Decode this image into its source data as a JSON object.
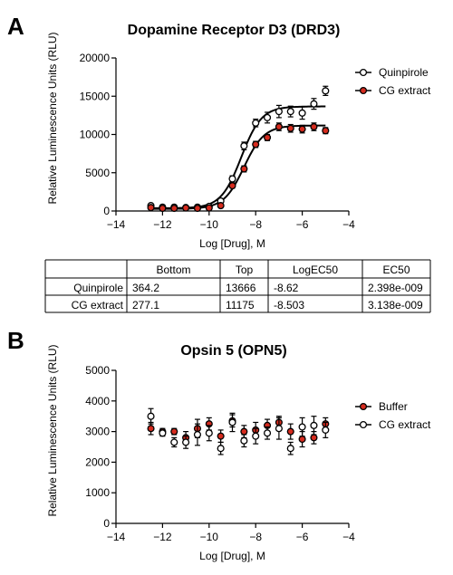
{
  "panels": [
    {
      "letter": "A"
    },
    {
      "letter": "B"
    }
  ],
  "colors": {
    "open_marker": "#ffffff",
    "red_marker": "#d52b1e",
    "line": "#000000"
  },
  "chart_data": [
    {
      "type": "scatter",
      "title": "Dopamine Receptor D3 (DRD3)",
      "xlabel": "Log [Drug], M",
      "ylabel": "Relative Luminescence Units (RLU)",
      "xlim": [
        -14,
        -4
      ],
      "ylim": [
        0,
        20000
      ],
      "xticks": [
        -14,
        -12,
        -10,
        -8,
        -6,
        -4
      ],
      "yticks": [
        0,
        5000,
        10000,
        15000,
        20000
      ],
      "legend_position": "right",
      "series": [
        {
          "name": "Quinpirole",
          "marker": "open",
          "fit": {
            "bottom": 364.2,
            "top": 13666,
            "logec50": -8.62
          },
          "points": [
            {
              "x": -12.5,
              "y": 700,
              "err": 150
            },
            {
              "x": -12.0,
              "y": 500,
              "err": 100
            },
            {
              "x": -11.5,
              "y": 500,
              "err": 100
            },
            {
              "x": -11.0,
              "y": 450,
              "err": 100
            },
            {
              "x": -10.5,
              "y": 500,
              "err": 100
            },
            {
              "x": -10.0,
              "y": 600,
              "err": 150
            },
            {
              "x": -9.5,
              "y": 1300,
              "err": 200
            },
            {
              "x": -9.0,
              "y": 4200,
              "err": 400
            },
            {
              "x": -8.5,
              "y": 8500,
              "err": 500
            },
            {
              "x": -8.0,
              "y": 11500,
              "err": 500
            },
            {
              "x": -7.5,
              "y": 12200,
              "err": 700
            },
            {
              "x": -7.0,
              "y": 13000,
              "err": 800
            },
            {
              "x": -6.5,
              "y": 13000,
              "err": 700
            },
            {
              "x": -6.0,
              "y": 12800,
              "err": 800
            },
            {
              "x": -5.5,
              "y": 14000,
              "err": 700
            },
            {
              "x": -5.0,
              "y": 15700,
              "err": 600
            }
          ]
        },
        {
          "name": "CG extract",
          "marker": "red",
          "fit": {
            "bottom": 277.1,
            "top": 11175,
            "logec50": -8.503
          },
          "points": [
            {
              "x": -12.5,
              "y": 450,
              "err": 100
            },
            {
              "x": -12.0,
              "y": 350,
              "err": 100
            },
            {
              "x": -11.5,
              "y": 350,
              "err": 100
            },
            {
              "x": -11.0,
              "y": 400,
              "err": 100
            },
            {
              "x": -10.5,
              "y": 350,
              "err": 100
            },
            {
              "x": -10.0,
              "y": 400,
              "err": 100
            },
            {
              "x": -9.5,
              "y": 700,
              "err": 150
            },
            {
              "x": -9.0,
              "y": 3300,
              "err": 300
            },
            {
              "x": -8.5,
              "y": 5500,
              "err": 400
            },
            {
              "x": -8.0,
              "y": 8700,
              "err": 400
            },
            {
              "x": -7.5,
              "y": 9600,
              "err": 400
            },
            {
              "x": -7.0,
              "y": 11000,
              "err": 500
            },
            {
              "x": -6.5,
              "y": 10800,
              "err": 500
            },
            {
              "x": -6.0,
              "y": 10700,
              "err": 500
            },
            {
              "x": -5.5,
              "y": 11000,
              "err": 500
            },
            {
              "x": -5.0,
              "y": 10500,
              "err": 400
            }
          ]
        }
      ]
    },
    {
      "type": "table",
      "columns": [
        "",
        "Bottom",
        "Top",
        "LogEC50",
        "EC50"
      ],
      "rows": [
        [
          "Quinpirole",
          "364.2",
          "13666",
          "-8.62",
          "2.398e-009"
        ],
        [
          "CG extract",
          "277.1",
          "11175",
          "-8.503",
          "3.138e-009"
        ]
      ]
    },
    {
      "type": "scatter",
      "title": "Opsin 5 (OPN5)",
      "xlabel": "Log [Drug], M",
      "ylabel": "Relative Luminescence Units (RLU)",
      "xlim": [
        -14,
        -4
      ],
      "ylim": [
        0,
        5000
      ],
      "xticks": [
        -14,
        -12,
        -10,
        -8,
        -6,
        -4
      ],
      "yticks": [
        0,
        1000,
        2000,
        3000,
        4000,
        5000
      ],
      "legend_position": "right",
      "series": [
        {
          "name": "Buffer",
          "marker": "red",
          "points": [
            {
              "x": -12.5,
              "y": 3100,
              "err": 200
            },
            {
              "x": -12.0,
              "y": 3000,
              "err": 100
            },
            {
              "x": -11.5,
              "y": 3000,
              "err": 100
            },
            {
              "x": -11.0,
              "y": 2800,
              "err": 200
            },
            {
              "x": -10.5,
              "y": 3100,
              "err": 300
            },
            {
              "x": -10.0,
              "y": 3250,
              "err": 200
            },
            {
              "x": -9.5,
              "y": 2850,
              "err": 200
            },
            {
              "x": -9.0,
              "y": 3350,
              "err": 200
            },
            {
              "x": -8.5,
              "y": 3000,
              "err": 200
            },
            {
              "x": -8.0,
              "y": 3050,
              "err": 250
            },
            {
              "x": -7.5,
              "y": 3200,
              "err": 200
            },
            {
              "x": -7.0,
              "y": 3300,
              "err": 200
            },
            {
              "x": -6.5,
              "y": 3000,
              "err": 250
            },
            {
              "x": -6.0,
              "y": 2750,
              "err": 250
            },
            {
              "x": -5.5,
              "y": 2800,
              "err": 200
            },
            {
              "x": -5.0,
              "y": 3250,
              "err": 200
            }
          ]
        },
        {
          "name": "CG extract",
          "marker": "open",
          "points": [
            {
              "x": -12.5,
              "y": 3500,
              "err": 250
            },
            {
              "x": -12.0,
              "y": 2950,
              "err": 100
            },
            {
              "x": -11.5,
              "y": 2650,
              "err": 150
            },
            {
              "x": -11.0,
              "y": 2650,
              "err": 200
            },
            {
              "x": -10.5,
              "y": 2900,
              "err": 350
            },
            {
              "x": -10.0,
              "y": 2950,
              "err": 250
            },
            {
              "x": -9.5,
              "y": 2450,
              "err": 200
            },
            {
              "x": -9.0,
              "y": 3300,
              "err": 300
            },
            {
              "x": -8.5,
              "y": 2700,
              "err": 200
            },
            {
              "x": -8.0,
              "y": 2850,
              "err": 250
            },
            {
              "x": -7.5,
              "y": 2950,
              "err": 200
            },
            {
              "x": -7.0,
              "y": 3100,
              "err": 350
            },
            {
              "x": -6.5,
              "y": 2450,
              "err": 200
            },
            {
              "x": -6.0,
              "y": 3150,
              "err": 300
            },
            {
              "x": -5.5,
              "y": 3200,
              "err": 300
            },
            {
              "x": -5.0,
              "y": 3050,
              "err": 250
            }
          ]
        }
      ]
    }
  ]
}
